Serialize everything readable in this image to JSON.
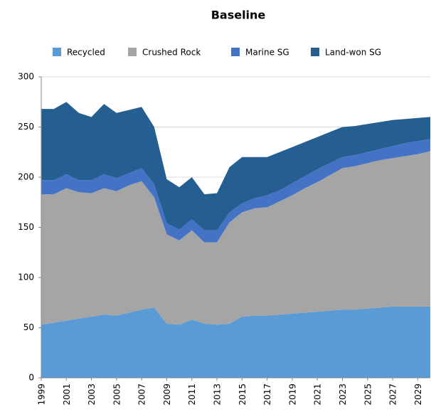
{
  "chart_data": {
    "type": "stacked-area",
    "title": "Baseline",
    "x": [
      1999,
      2000,
      2001,
      2002,
      2003,
      2004,
      2005,
      2006,
      2007,
      2008,
      2009,
      2010,
      2011,
      2012,
      2013,
      2014,
      2015,
      2016,
      2017,
      2018,
      2019,
      2020,
      2021,
      2022,
      2023,
      2024,
      2025,
      2026,
      2027,
      2028,
      2029,
      2030
    ],
    "xlim": [
      1999,
      2030
    ],
    "xticks": [
      1999,
      2001,
      2003,
      2005,
      2007,
      2009,
      2011,
      2013,
      2015,
      2017,
      2019,
      2021,
      2023,
      2025,
      2027,
      2029
    ],
    "ylim": [
      0,
      300
    ],
    "yticks": [
      0,
      50,
      100,
      150,
      200,
      250,
      300
    ],
    "grid": true,
    "series": [
      {
        "name": "Recycled",
        "color": "#5b9bd5",
        "values": [
          53,
          55,
          57,
          59,
          61,
          63,
          62,
          65,
          68,
          70,
          54,
          53,
          58,
          54,
          53,
          54,
          61,
          62,
          62,
          63,
          64,
          65,
          66,
          67,
          68,
          68,
          69,
          70,
          71,
          71,
          71,
          71
        ]
      },
      {
        "name": "Crushed Rock",
        "color": "#a5a5a5",
        "values": [
          130,
          128,
          132,
          126,
          123,
          126,
          124,
          127,
          128,
          110,
          89,
          84,
          89,
          81,
          82,
          101,
          104,
          107,
          108,
          113,
          118,
          124,
          129,
          135,
          141,
          143,
          145,
          147,
          148,
          150,
          152,
          155
        ]
      },
      {
        "name": "Marine SG",
        "color": "#4472c4",
        "values": [
          14,
          14,
          14,
          12,
          13,
          14,
          13,
          12,
          13,
          13,
          11,
          11,
          11,
          12,
          12,
          10,
          9,
          10,
          12,
          11,
          12,
          12,
          13,
          12,
          11,
          11,
          11,
          11,
          12,
          13,
          13,
          12
        ]
      },
      {
        "name": "Land-won SG",
        "color": "#255e91",
        "values": [
          71,
          71,
          72,
          67,
          63,
          70,
          65,
          63,
          61,
          57,
          44,
          42,
          42,
          36,
          37,
          45,
          46,
          41,
          38,
          38,
          36,
          34,
          32,
          31,
          30,
          29,
          28,
          27,
          26,
          24,
          23,
          22
        ]
      }
    ]
  }
}
